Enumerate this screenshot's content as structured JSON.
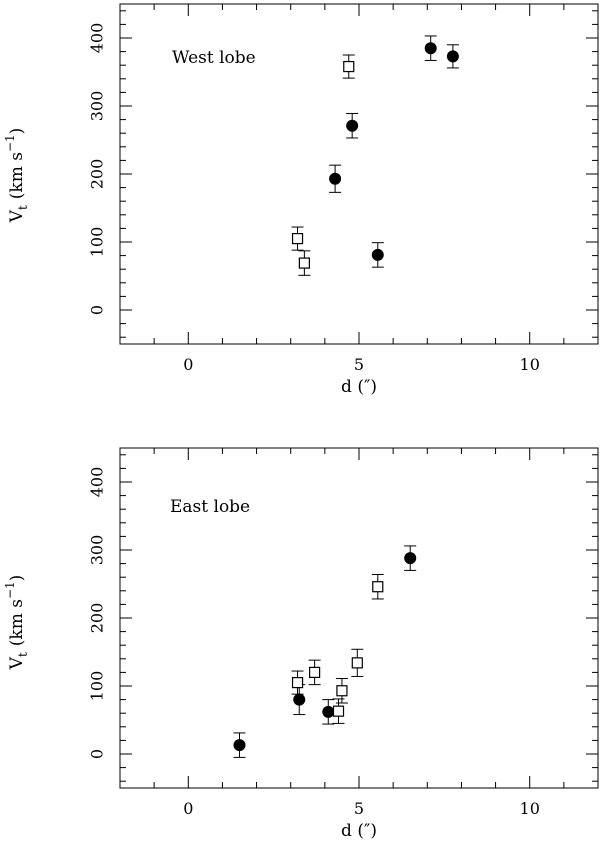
{
  "chart_data": [
    {
      "type": "scatter",
      "annotation": "West lobe",
      "xlabel": "d (″)",
      "ylabel": "V_t (km s^-1)",
      "ylabel_parts": {
        "v": "V",
        "sub": "t",
        "open": "(km s",
        "sup": "−1",
        "close": ")"
      },
      "xlim": [
        -2,
        12
      ],
      "ylim": [
        -50,
        450
      ],
      "x_ticks": [
        0,
        5,
        10
      ],
      "y_ticks": [
        0,
        100,
        200,
        300,
        400
      ],
      "legend": "none",
      "grid": false,
      "series": [
        {
          "marker": "filled-circle",
          "points": [
            {
              "x": 4.3,
              "y": 193,
              "err": 20
            },
            {
              "x": 4.8,
              "y": 271,
              "err": 18
            },
            {
              "x": 5.55,
              "y": 81,
              "err": 18
            },
            {
              "x": 7.1,
              "y": 385,
              "err": 18
            },
            {
              "x": 7.75,
              "y": 373,
              "err": 17
            }
          ]
        },
        {
          "marker": "open-square",
          "points": [
            {
              "x": 3.2,
              "y": 105,
              "err": 17
            },
            {
              "x": 3.4,
              "y": 69,
              "err": 18
            },
            {
              "x": 4.7,
              "y": 358,
              "err": 17
            }
          ]
        }
      ]
    },
    {
      "type": "scatter",
      "annotation": "East lobe",
      "xlabel": "d (″)",
      "ylabel": "V_t (km s^-1)",
      "ylabel_parts": {
        "v": "V",
        "sub": "t",
        "open": "(km s",
        "sup": "−1",
        "close": ")"
      },
      "xlim": [
        -2,
        12
      ],
      "ylim": [
        -50,
        450
      ],
      "x_ticks": [
        0,
        5,
        10
      ],
      "y_ticks": [
        0,
        100,
        200,
        300,
        400
      ],
      "legend": "none",
      "grid": false,
      "series": [
        {
          "marker": "filled-circle",
          "points": [
            {
              "x": 1.5,
              "y": 13,
              "err": 18
            },
            {
              "x": 3.25,
              "y": 80,
              "err": 22
            },
            {
              "x": 4.1,
              "y": 62,
              "err": 18
            },
            {
              "x": 6.5,
              "y": 288,
              "err": 18
            }
          ]
        },
        {
          "marker": "open-square",
          "points": [
            {
              "x": 3.2,
              "y": 105,
              "err": 17
            },
            {
              "x": 3.7,
              "y": 120,
              "err": 18
            },
            {
              "x": 4.4,
              "y": 63,
              "err": 18
            },
            {
              "x": 4.5,
              "y": 93,
              "err": 18
            },
            {
              "x": 4.95,
              "y": 134,
              "err": 20
            },
            {
              "x": 5.55,
              "y": 246,
              "err": 18
            }
          ]
        }
      ]
    }
  ]
}
